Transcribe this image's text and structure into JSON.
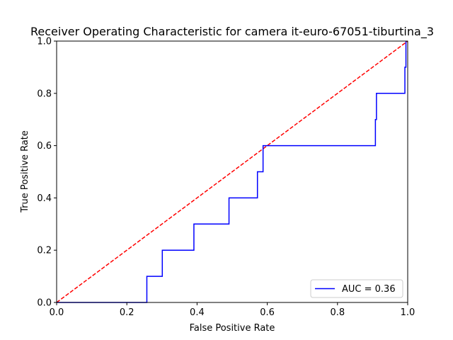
{
  "chart_data": {
    "type": "line",
    "title": "Receiver Operating Characteristic for camera it-euro-67051-tiburtina_3",
    "xlabel": "False Positive Rate",
    "ylabel": "True Positive Rate",
    "xlim": [
      0,
      1
    ],
    "ylim": [
      0,
      1
    ],
    "xticks": [
      "0.0",
      "0.2",
      "0.4",
      "0.6",
      "0.8",
      "1.0"
    ],
    "yticks": [
      "0.0",
      "0.2",
      "0.4",
      "0.6",
      "0.8",
      "1.0"
    ],
    "grid": false,
    "legend_position": "lower-right",
    "series": [
      {
        "name": "AUC = 0.36",
        "color": "#0000ff",
        "style": "solid",
        "x": [
          0.0,
          0.257,
          0.257,
          0.301,
          0.301,
          0.391,
          0.391,
          0.491,
          0.491,
          0.572,
          0.572,
          0.588,
          0.588,
          0.908,
          0.908,
          0.911,
          0.911,
          0.992,
          0.992,
          0.995,
          0.995
        ],
        "y": [
          0.0,
          0.0,
          0.1,
          0.1,
          0.2,
          0.2,
          0.3,
          0.3,
          0.4,
          0.4,
          0.5,
          0.5,
          0.6,
          0.6,
          0.7,
          0.7,
          0.8,
          0.8,
          0.9,
          0.9,
          1.0
        ]
      },
      {
        "color": "#ff0000",
        "style": "dashed",
        "x": [
          0,
          1
        ],
        "y": [
          0,
          1
        ]
      }
    ]
  }
}
